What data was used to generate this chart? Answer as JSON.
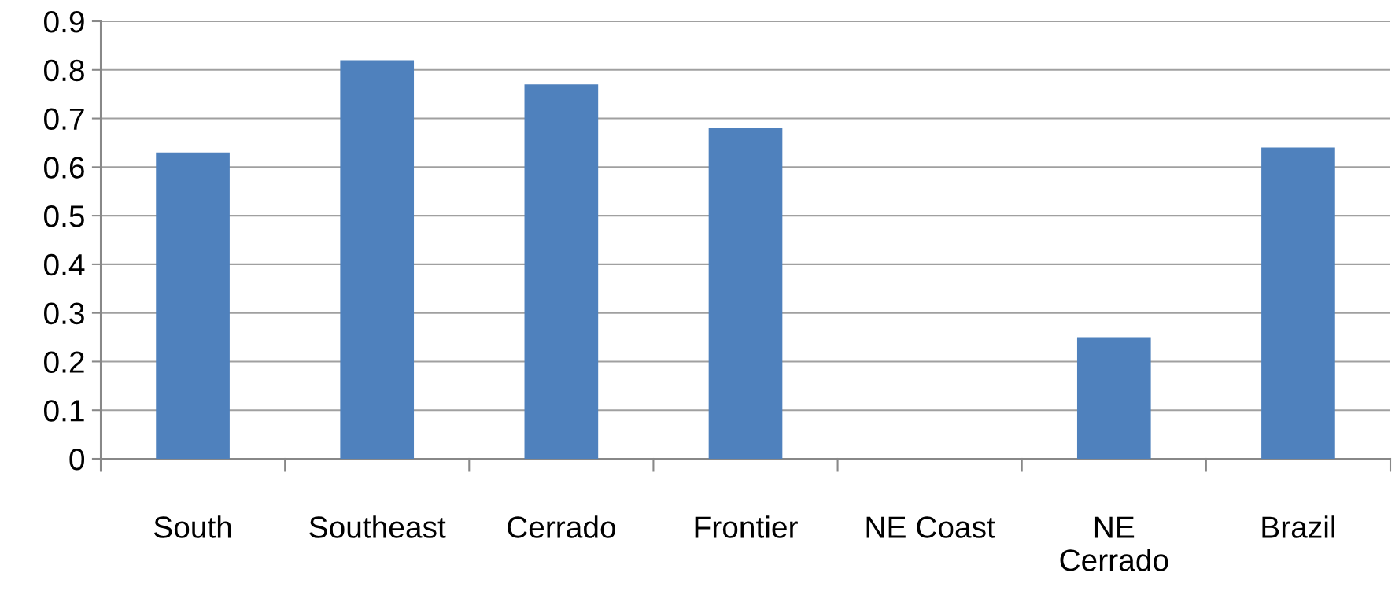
{
  "chart_data": {
    "type": "bar",
    "categories": [
      "South",
      "Southeast",
      "Cerrado",
      "Frontier",
      "NE Coast",
      "NE Cerrado",
      "Brazil"
    ],
    "values": [
      0.63,
      0.82,
      0.77,
      0.68,
      0,
      0.25,
      0.64
    ],
    "color": "#4f81bd",
    "ylim": [
      0,
      0.9
    ],
    "yticks": [
      0,
      0.1,
      0.2,
      0.3,
      0.4,
      0.5,
      0.6,
      0.7,
      0.8,
      0.9
    ],
    "grid": "y"
  }
}
